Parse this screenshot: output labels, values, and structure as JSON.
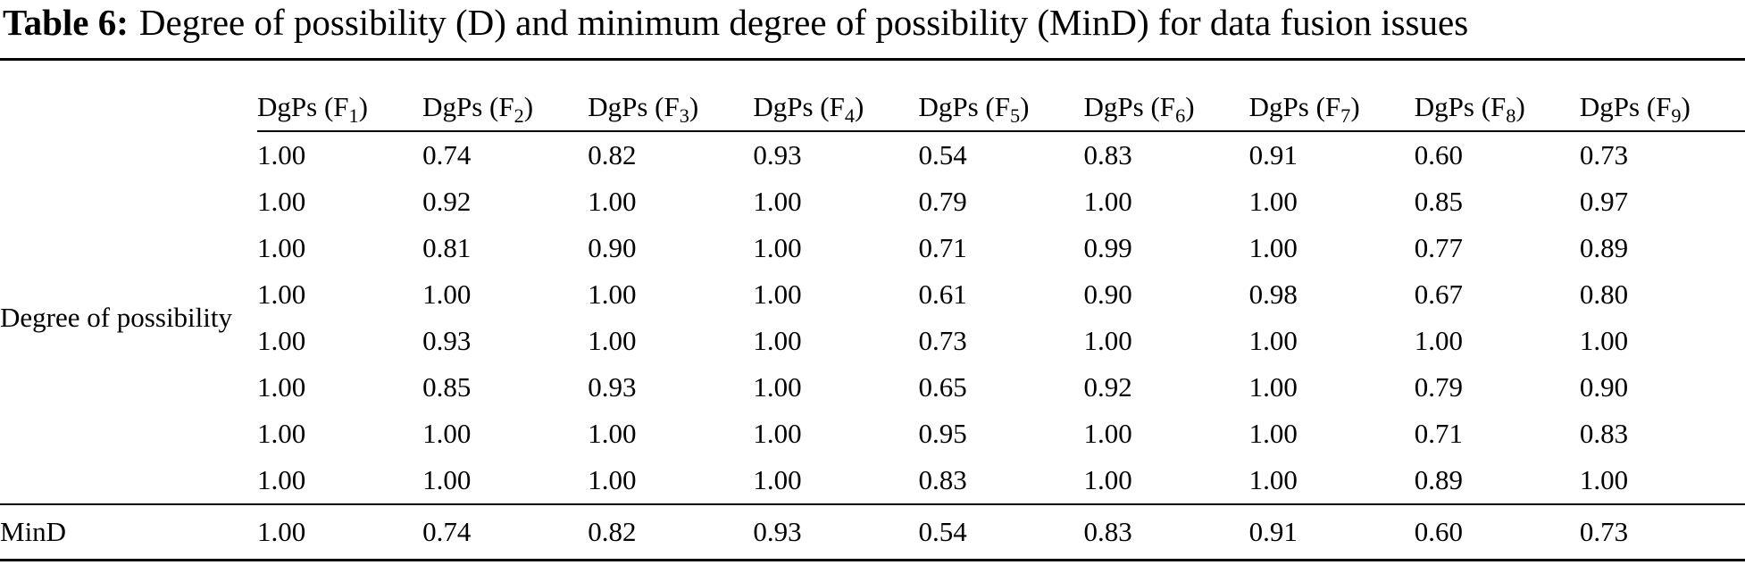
{
  "title": {
    "label": "Table 6:",
    "text": "Degree of possibility (D) and minimum degree of possibility (MinD) for data fusion issues"
  },
  "table": {
    "row_group_label": "Degree of possibility",
    "headers": [
      {
        "prefix": "DgPs (F",
        "sub": "1",
        "suffix": ")"
      },
      {
        "prefix": "DgPs (F",
        "sub": "2",
        "suffix": ")"
      },
      {
        "prefix": "DgPs (F",
        "sub": "3",
        "suffix": ")"
      },
      {
        "prefix": "DgPs (F",
        "sub": "4",
        "suffix": ")"
      },
      {
        "prefix": "DgPs (F",
        "sub": "5",
        "suffix": ")"
      },
      {
        "prefix": "DgPs (F",
        "sub": "6",
        "suffix": ")"
      },
      {
        "prefix": "DgPs (F",
        "sub": "7",
        "suffix": ")"
      },
      {
        "prefix": "DgPs (F",
        "sub": "8",
        "suffix": ")"
      },
      {
        "prefix": "DgPs (F",
        "sub": "9",
        "suffix": ")"
      }
    ],
    "rows": [
      [
        "1.00",
        "0.74",
        "0.82",
        "0.93",
        "0.54",
        "0.83",
        "0.91",
        "0.60",
        "0.73"
      ],
      [
        "1.00",
        "0.92",
        "1.00",
        "1.00",
        "0.79",
        "1.00",
        "1.00",
        "0.85",
        "0.97"
      ],
      [
        "1.00",
        "0.81",
        "0.90",
        "1.00",
        "0.71",
        "0.99",
        "1.00",
        "0.77",
        "0.89"
      ],
      [
        "1.00",
        "1.00",
        "1.00",
        "1.00",
        "0.61",
        "0.90",
        "0.98",
        "0.67",
        "0.80"
      ],
      [
        "1.00",
        "0.93",
        "1.00",
        "1.00",
        "0.73",
        "1.00",
        "1.00",
        "1.00",
        "1.00"
      ],
      [
        "1.00",
        "0.85",
        "0.93",
        "1.00",
        "0.65",
        "0.92",
        "1.00",
        "0.79",
        "0.90"
      ],
      [
        "1.00",
        "1.00",
        "1.00",
        "1.00",
        "0.95",
        "1.00",
        "1.00",
        "0.71",
        "0.83"
      ],
      [
        "1.00",
        "1.00",
        "1.00",
        "1.00",
        "0.83",
        "1.00",
        "1.00",
        "0.89",
        "1.00"
      ]
    ],
    "footer": {
      "label": "MinD",
      "values": [
        "1.00",
        "0.74",
        "0.82",
        "0.93",
        "0.54",
        "0.83",
        "0.91",
        "0.60",
        "0.73"
      ]
    }
  },
  "colors": {
    "background": "#ffffff",
    "text": "#000000",
    "rule": "#000000"
  }
}
